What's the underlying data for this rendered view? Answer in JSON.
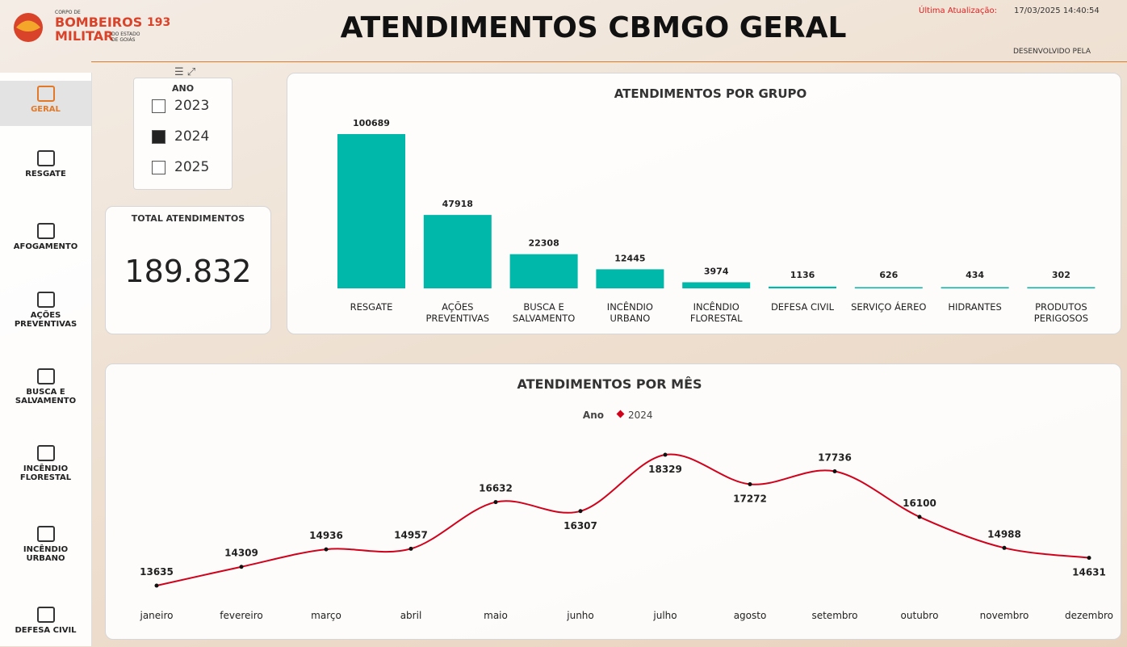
{
  "header": {
    "logo_top": "CORPO DE",
    "logo_main": "BOMBEIROS",
    "logo_sub": "MILITAR",
    "logo_state": "DO ESTADO DE GOIÁS",
    "logo_number": "193",
    "title": "ATENDIMENTOS CBMGO GERAL",
    "update_label": "Última Atualização:",
    "update_value": "17/03/2025 14:40:54",
    "developed": "DESENVOLVIDO PELA"
  },
  "sidebar": {
    "items": [
      {
        "label": "GERAL",
        "selected": true
      },
      {
        "label": "RESGATE",
        "selected": false
      },
      {
        "label": "AFOGAMENTO",
        "selected": false
      },
      {
        "label": "AÇÕES\nPREVENTIVAS",
        "selected": false
      },
      {
        "label": "BUSCA E\nSALVAMENTO",
        "selected": false
      },
      {
        "label": "INCÊNDIO\nFLORESTAL",
        "selected": false
      },
      {
        "label": "INCÊNDIO\nURBANO",
        "selected": false
      },
      {
        "label": "DEFESA CIVIL",
        "selected": false
      }
    ]
  },
  "filter": {
    "title": "ANO",
    "items": [
      {
        "label": "2023",
        "checked": false
      },
      {
        "label": "2024",
        "checked": true
      },
      {
        "label": "2025",
        "checked": false
      }
    ]
  },
  "kpi": {
    "label": "TOTAL ATENDIMENTOS",
    "value": "189.832"
  },
  "chart_data": [
    {
      "type": "bar",
      "title": "ATENDIMENTOS POR GRUPO",
      "color": "#00b8a9",
      "categories": [
        "RESGATE",
        "AÇÕES\nPREVENTIVAS",
        "BUSCA E\nSALVAMENTO",
        "INCÊNDIO\nURBANO",
        "INCÊNDIO\nFLORESTAL",
        "DEFESA CIVIL",
        "SERVIÇO ÁEREO",
        "HIDRANTES",
        "PRODUTOS\nPERIGOSOS"
      ],
      "values": [
        100689,
        47918,
        22308,
        12445,
        3974,
        1136,
        626,
        434,
        302
      ]
    },
    {
      "type": "line",
      "title": "ATENDIMENTOS POR MÊS",
      "legend_title": "Ano",
      "categories": [
        "janeiro",
        "fevereiro",
        "março",
        "abril",
        "maio",
        "junho",
        "julho",
        "agosto",
        "setembro",
        "outubro",
        "novembro",
        "dezembro"
      ],
      "series": [
        {
          "name": "2024",
          "color": "#d0021b",
          "values": [
            13635,
            14309,
            14936,
            14957,
            16632,
            16307,
            18329,
            17272,
            17736,
            16100,
            14988,
            14631
          ]
        }
      ]
    }
  ]
}
